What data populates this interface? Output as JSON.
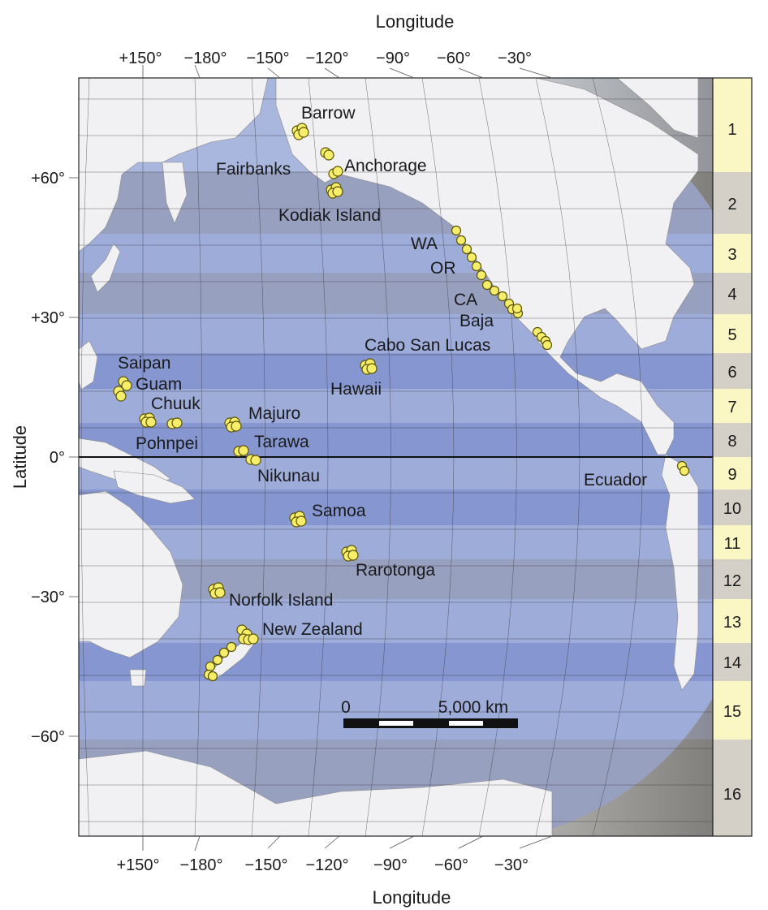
{
  "colors": {
    "ocean": "#5c74c2",
    "land": "#f1f1f3",
    "band_light": "#c7cfe9",
    "band_gray": "#bdbab6",
    "zone_yellow": "#faf7c4",
    "zone_gray": "#d4d0c8",
    "site_fill": "#f6ee6a",
    "site_stroke": "#5a5200"
  },
  "axes": {
    "top_title": "Longitude",
    "bottom_title": "Longitude",
    "left_title": "Latitude",
    "lon_ticks": [
      "+150°",
      "−180°",
      "−150°",
      "−120°",
      "−90°",
      "−60°",
      "−30°"
    ],
    "lat_ticks": [
      "+60°",
      "+30°",
      "0°",
      "−30°",
      "−60°"
    ]
  },
  "zones": [
    "1",
    "2",
    "3",
    "4",
    "5",
    "6",
    "7",
    "8",
    "9",
    "10",
    "11",
    "12",
    "13",
    "14",
    "15",
    "16"
  ],
  "places": {
    "barrow": "Barrow",
    "fairbanks": "Fairbanks",
    "anchorage": "Anchorage",
    "kodiak": "Kodiak Island",
    "wa": "WA",
    "or": "OR",
    "ca": "CA",
    "baja": "Baja",
    "cabo": "Cabo San Lucas",
    "hawaii": "Hawaii",
    "saipan": "Saipan",
    "guam": "Guam",
    "chuuk": "Chuuk",
    "pohnpei": "Pohnpei",
    "majuro": "Majuro",
    "tarawa": "Tarawa",
    "nikunau": "Nikunau",
    "ecuador": "Ecuador",
    "samoa": "Samoa",
    "rarotonga": "Rarotonga",
    "norfolk": "Norfolk Island",
    "newzealand": "New Zealand"
  },
  "scale_bar": {
    "start": "0",
    "end": "5,000 km"
  }
}
